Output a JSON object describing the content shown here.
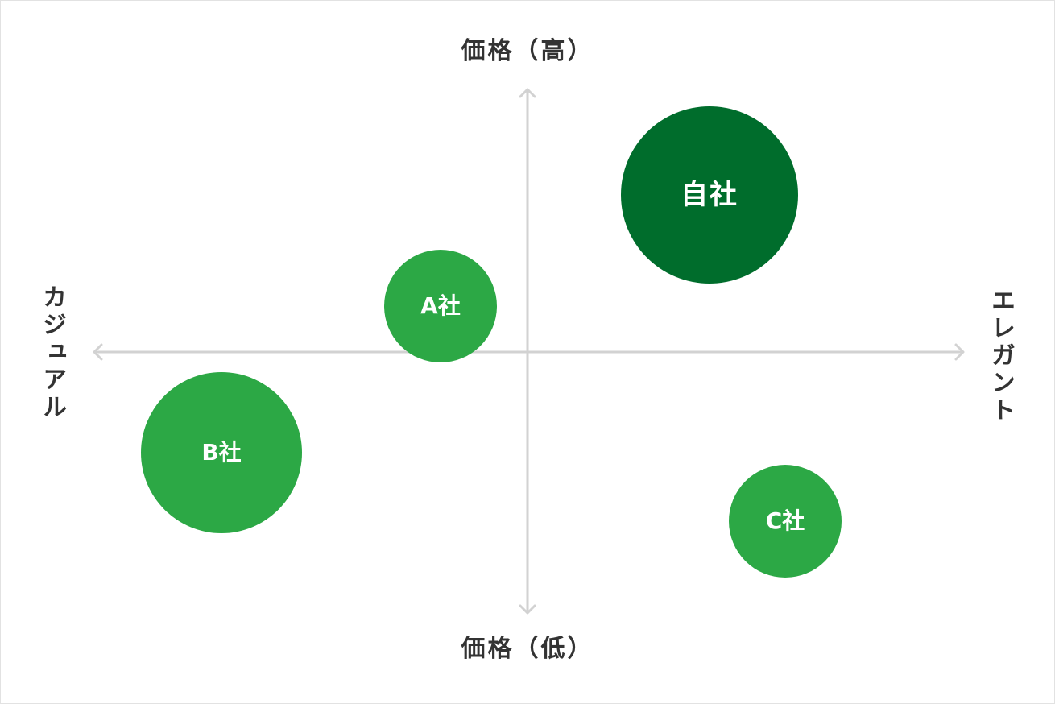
{
  "axes": {
    "top_label": "価格（高）",
    "bottom_label": "価格（低）",
    "left_label": "カジュアル",
    "right_label": "エレガント"
  },
  "companies": [
    {
      "label": "自社",
      "color": "#006d2c"
    },
    {
      "label": "A社",
      "color": "#2ca845"
    },
    {
      "label": "B社",
      "color": "#2ca845"
    },
    {
      "label": "C社",
      "color": "#2ca845"
    }
  ],
  "colors": {
    "axis_line": "#d2d2d2",
    "text": "#333333",
    "highlight": "#006d2c",
    "competitor": "#2ca845"
  }
}
